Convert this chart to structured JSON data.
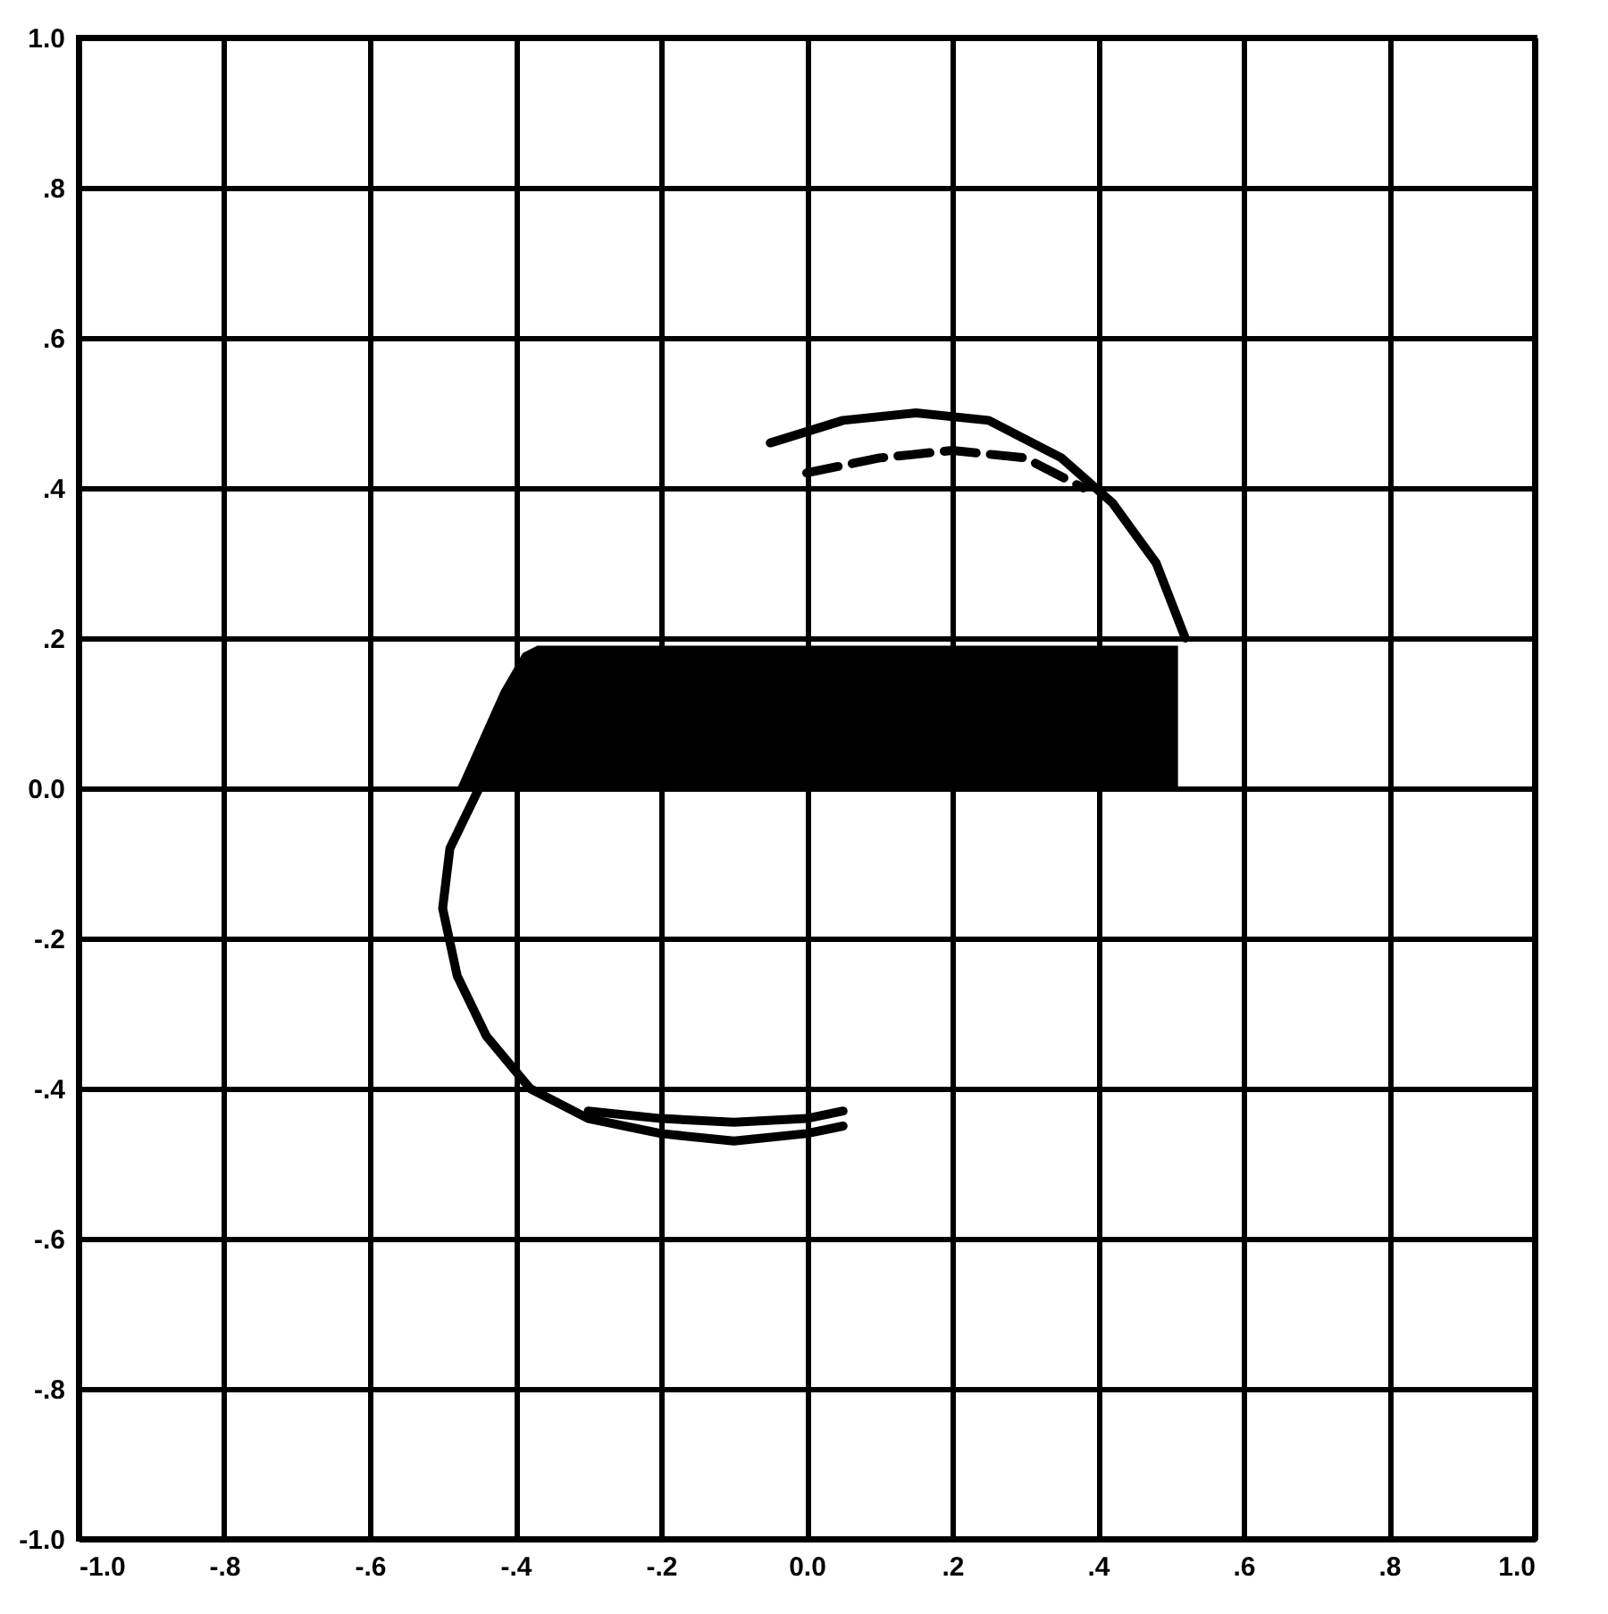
{
  "chart_data": {
    "type": "line",
    "xlim": [
      -1,
      1
    ],
    "ylim": [
      -1,
      1
    ],
    "xticks": [
      {
        "value": -1,
        "label": "-1.0"
      },
      {
        "value": -0.8,
        "label": "-.8"
      },
      {
        "value": -0.6,
        "label": "-.6"
      },
      {
        "value": -0.4,
        "label": "-.4"
      },
      {
        "value": -0.2,
        "label": "-.2"
      },
      {
        "value": 0,
        "label": "0.0"
      },
      {
        "value": 0.2,
        "label": ".2"
      },
      {
        "value": 0.4,
        "label": ".4"
      },
      {
        "value": 0.6,
        "label": ".6"
      },
      {
        "value": 0.8,
        "label": ".8"
      },
      {
        "value": 1,
        "label": "1.0"
      }
    ],
    "yticks": [
      {
        "value": -1,
        "label": "-1.0"
      },
      {
        "value": -0.8,
        "label": "-.8"
      },
      {
        "value": -0.6,
        "label": "-.6"
      },
      {
        "value": -0.4,
        "label": "-.4"
      },
      {
        "value": -0.2,
        "label": "-.2"
      },
      {
        "value": 0,
        "label": "0.0"
      },
      {
        "value": 0.2,
        "label": ".2"
      },
      {
        "value": 0.4,
        "label": ".4"
      },
      {
        "value": 0.6,
        "label": ".6"
      },
      {
        "value": 0.8,
        "label": ".8"
      },
      {
        "value": 1,
        "label": "1.0"
      }
    ],
    "grid": true,
    "series": [
      {
        "type": "area",
        "color": "#000000",
        "x": [
          -0.48,
          -0.42,
          -0.39,
          -0.37,
          0.49,
          0.51
        ],
        "values": [
          0.0,
          0.13,
          0.18,
          0.19,
          0.19,
          0.19
        ]
      },
      {
        "color": "#000000",
        "x": [
          -0.3,
          -0.2,
          -0.1,
          0.0,
          0.05
        ],
        "values": [
          -0.43,
          -0.44,
          -0.445,
          -0.44,
          -0.43
        ]
      },
      {
        "color": "#000000",
        "x": [
          -0.05,
          0.05,
          0.15,
          0.25,
          0.35,
          0.42,
          0.48,
          0.52
        ],
        "values": [
          0.46,
          0.49,
          0.5,
          0.49,
          0.44,
          0.38,
          0.3,
          0.2
        ]
      },
      {
        "color": "#000000",
        "x": [
          -0.45,
          -0.49,
          -0.5,
          -0.48,
          -0.44,
          -0.38,
          -0.3,
          -0.2,
          -0.1,
          0.0,
          0.05
        ],
        "values": [
          0.0,
          -0.08,
          -0.16,
          -0.25,
          -0.33,
          -0.4,
          -0.44,
          -0.46,
          -0.47,
          -0.46,
          -0.45
        ]
      },
      {
        "color": "#000000",
        "line_style": "dashed",
        "x": [
          0.0,
          0.1,
          0.2,
          0.3,
          0.38
        ],
        "values": [
          0.42,
          0.44,
          0.45,
          0.44,
          0.4
        ]
      }
    ]
  }
}
